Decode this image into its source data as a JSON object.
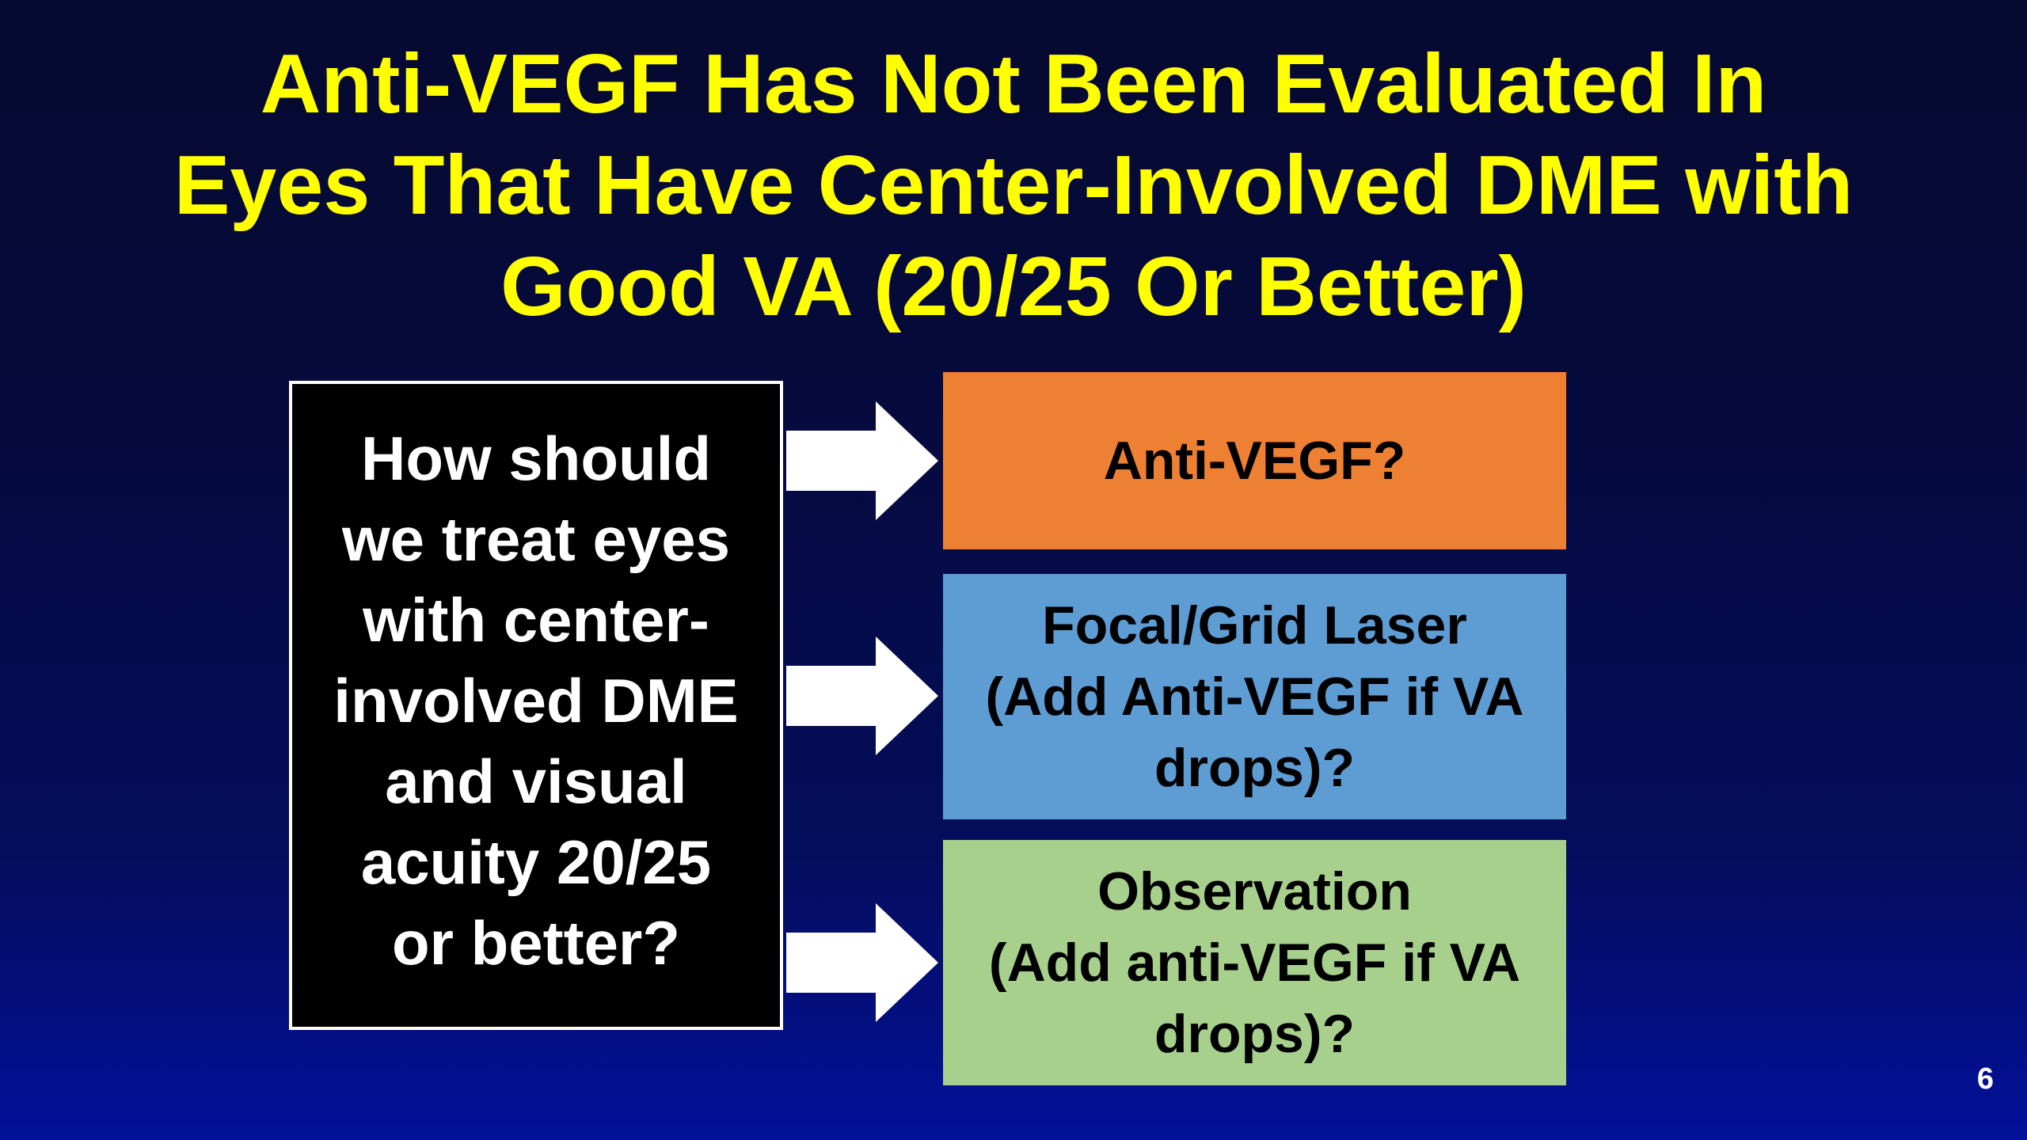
{
  "slide": {
    "title_lines": [
      "Anti-VEGF Has Not Been Evaluated In",
      "Eyes That Have Center-Involved DME with",
      "Good VA (20/25 Or Better)"
    ],
    "question_lines": [
      "How should",
      "we treat eyes",
      "with center-",
      "involved DME",
      "and visual",
      "acuity 20/25",
      "or better?"
    ],
    "options": [
      {
        "lines": [
          "Anti-VEGF?"
        ],
        "color": "#ee8034"
      },
      {
        "lines": [
          "Focal/Grid Laser",
          "(Add Anti-VEGF if VA",
          "drops)?"
        ],
        "color": "#5e9cd4"
      },
      {
        "lines": [
          "Observation",
          "(Add anti-VEGF if VA",
          "drops)?"
        ],
        "color": "#a8d08d"
      }
    ],
    "page_number": "6",
    "colors": {
      "title": "#ffff00",
      "background": "#060a3c",
      "arrow": "#ffffff"
    }
  }
}
